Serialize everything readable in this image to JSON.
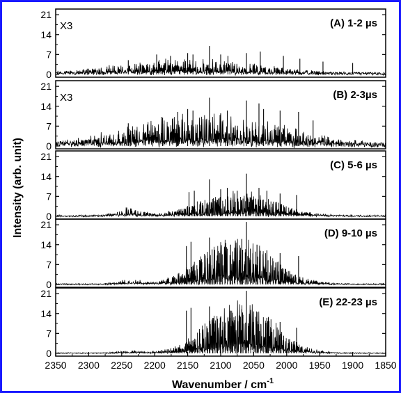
{
  "chart_data": {
    "type": "line",
    "xlabel": "Wavenumber / cm",
    "xlabel_sup": "-1",
    "ylabel": "Intensity (arb. unit)",
    "xlim": [
      2350,
      1850
    ],
    "x_reversed": true,
    "x_ticks": [
      2350,
      2300,
      2250,
      2200,
      2150,
      2100,
      2050,
      2000,
      1950,
      1900,
      1850
    ],
    "ylim": [
      -1,
      23
    ],
    "y_ticks": [
      0,
      7,
      14,
      21
    ],
    "grid": false,
    "legend": "none",
    "line_color": "#000000",
    "frame_color": "#1a1aff",
    "panels": [
      {
        "id": "A",
        "label": "(A) 1-2 µs",
        "multiplier": "X3",
        "envelope": {
          "center": 2150,
          "width": 150,
          "peak": 3.2
        },
        "noise_level": 1.3,
        "spikes": [
          {
            "x": 2240,
            "y": 5.0
          },
          {
            "x": 2197,
            "y": 7.0
          },
          {
            "x": 2176,
            "y": 6.5
          },
          {
            "x": 2150,
            "y": 7.5
          },
          {
            "x": 2142,
            "y": 7.0
          },
          {
            "x": 2117,
            "y": 10.0
          },
          {
            "x": 2100,
            "y": 7.0
          },
          {
            "x": 2089,
            "y": 6.5
          },
          {
            "x": 2061,
            "y": 7.5
          },
          {
            "x": 2040,
            "y": 8.0
          },
          {
            "x": 2005,
            "y": 6.5
          },
          {
            "x": 1980,
            "y": 5.5
          },
          {
            "x": 1945,
            "y": 4.5
          },
          {
            "x": 1900,
            "y": 4.0
          }
        ]
      },
      {
        "id": "B",
        "label": "(B) 2-3µs",
        "multiplier": "X3",
        "envelope": {
          "center": 2120,
          "width": 160,
          "peak": 6.5
        },
        "noise_level": 2.2,
        "spikes": [
          {
            "x": 2240,
            "y": 8.0
          },
          {
            "x": 2188,
            "y": 10.0
          },
          {
            "x": 2165,
            "y": 12.0
          },
          {
            "x": 2150,
            "y": 13.0
          },
          {
            "x": 2142,
            "y": 12.5
          },
          {
            "x": 2117,
            "y": 17.0
          },
          {
            "x": 2100,
            "y": 11.5
          },
          {
            "x": 2090,
            "y": 12.5
          },
          {
            "x": 2061,
            "y": 16.0
          },
          {
            "x": 2042,
            "y": 15.0
          },
          {
            "x": 2035,
            "y": 13.0
          },
          {
            "x": 2010,
            "y": 12.5
          },
          {
            "x": 1982,
            "y": 12.0
          },
          {
            "x": 1960,
            "y": 9.0
          }
        ]
      },
      {
        "id": "C",
        "label": "(C) 5-6 µs",
        "multiplier": "",
        "envelope": {
          "center": 2075,
          "width": 80,
          "peak": 5.5
        },
        "noise_level": 0.8,
        "second_hump": {
          "center": 2240,
          "width": 25,
          "peak": 1.8
        },
        "spikes": [
          {
            "x": 2148,
            "y": 8.5
          },
          {
            "x": 2140,
            "y": 9.0
          },
          {
            "x": 2117,
            "y": 13.0
          },
          {
            "x": 2100,
            "y": 9.5
          },
          {
            "x": 2090,
            "y": 10.0
          },
          {
            "x": 2075,
            "y": 9.0
          },
          {
            "x": 2061,
            "y": 15.0
          },
          {
            "x": 2042,
            "y": 10.0
          },
          {
            "x": 2030,
            "y": 9.0
          },
          {
            "x": 2010,
            "y": 8.0
          },
          {
            "x": 1985,
            "y": 7.5
          }
        ]
      },
      {
        "id": "D",
        "label": "(D) 9-10 µs",
        "multiplier": "",
        "envelope": {
          "center": 2075,
          "width": 75,
          "peak": 10.5
        },
        "noise_level": 0.6,
        "second_hump": {
          "center": 2240,
          "width": 25,
          "peak": 1.0
        },
        "spikes": [
          {
            "x": 2152,
            "y": 13.5
          },
          {
            "x": 2145,
            "y": 15.0
          },
          {
            "x": 2117,
            "y": 16.5
          },
          {
            "x": 2100,
            "y": 12.0
          },
          {
            "x": 2085,
            "y": 14.0
          },
          {
            "x": 2068,
            "y": 16.0
          },
          {
            "x": 2061,
            "y": 22.0
          },
          {
            "x": 2045,
            "y": 14.0
          },
          {
            "x": 2030,
            "y": 12.0
          },
          {
            "x": 2010,
            "y": 11.0
          },
          {
            "x": 1982,
            "y": 10.0
          }
        ]
      },
      {
        "id": "E",
        "label": "(E) 22-23 µs",
        "multiplier": "",
        "envelope": {
          "center": 2070,
          "width": 70,
          "peak": 11.5
        },
        "noise_level": 0.5,
        "second_hump": {
          "center": 2240,
          "width": 25,
          "peak": 0.6
        },
        "spikes": [
          {
            "x": 2152,
            "y": 15.0
          },
          {
            "x": 2145,
            "y": 16.0
          },
          {
            "x": 2117,
            "y": 16.5
          },
          {
            "x": 2100,
            "y": 13.0
          },
          {
            "x": 2085,
            "y": 15.0
          },
          {
            "x": 2068,
            "y": 15.5
          },
          {
            "x": 2061,
            "y": 22.0
          },
          {
            "x": 2045,
            "y": 14.5
          },
          {
            "x": 2030,
            "y": 12.5
          },
          {
            "x": 2010,
            "y": 11.0
          },
          {
            "x": 1985,
            "y": 9.0
          }
        ]
      }
    ]
  }
}
